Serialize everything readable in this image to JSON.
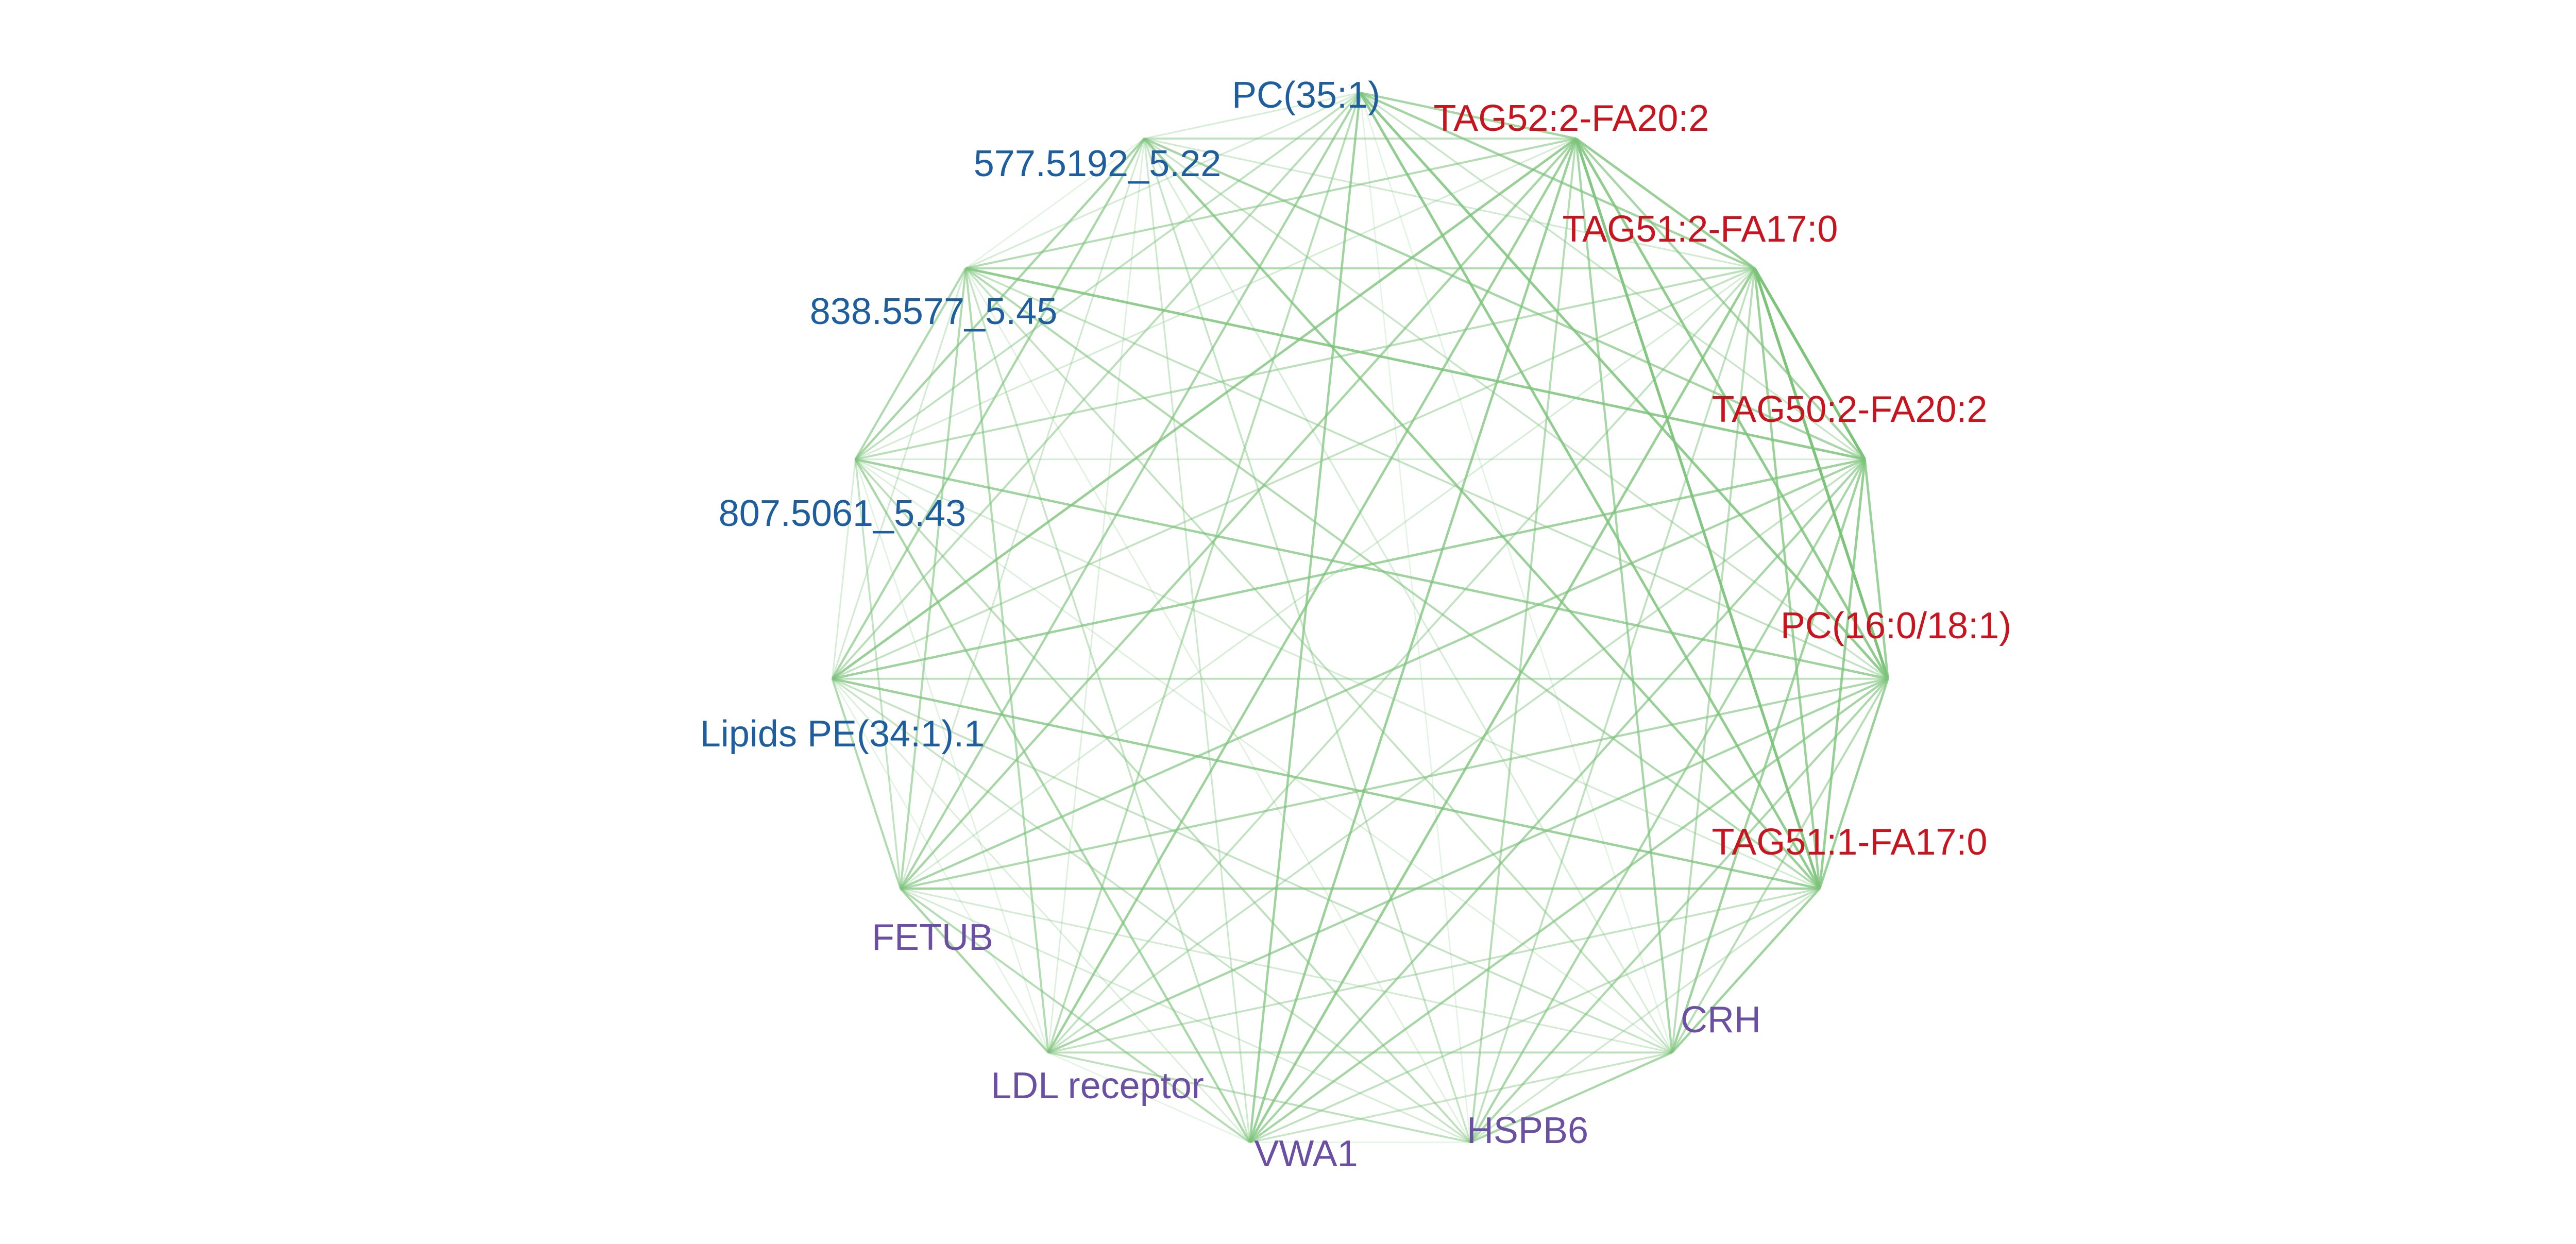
{
  "colors": {
    "edge": "#7cc47a",
    "group_blue": "#1f5e9e",
    "group_red": "#c8141e",
    "group_purple": "#6a4fa3"
  },
  "nodes": [
    {
      "label": "PC(35:1)",
      "group": "blue"
    },
    {
      "label": "TAG52:2-FA20:2",
      "group": "red"
    },
    {
      "label": "TAG51:2-FA17:0",
      "group": "red"
    },
    {
      "label": "TAG50:2-FA20:2",
      "group": "red"
    },
    {
      "label": "PC(16:0/18:1)",
      "group": "red"
    },
    {
      "label": "TAG51:1-FA17:0",
      "group": "red"
    },
    {
      "label": "CRH",
      "group": "purple"
    },
    {
      "label": "HSPB6",
      "group": "purple"
    },
    {
      "label": "VWA1",
      "group": "purple"
    },
    {
      "label": "LDL receptor",
      "group": "purple"
    },
    {
      "label": "FETUB",
      "group": "purple"
    },
    {
      "label": "Lipids PE(34:1).1",
      "group": "blue"
    },
    {
      "label": "807.5061_5.43",
      "group": "blue"
    },
    {
      "label": "838.5577_5.45",
      "group": "blue"
    },
    {
      "label": "577.5192_5.22",
      "group": "blue"
    }
  ]
}
